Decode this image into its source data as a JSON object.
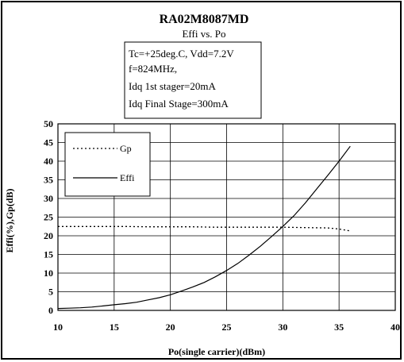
{
  "chart_data": {
    "type": "line",
    "title": "RA02M8087MD",
    "subtitle": "Effi vs. Po",
    "conditions": [
      "Tc=+25deg.C, Vdd=7.2V",
      "f=824MHz,",
      "Idq 1st stager=20mA",
      "Idq Final Stage=300mA"
    ],
    "xlabel": "Po(single carrier)(dBm)",
    "ylabel": "Effi(%),Gp(dB)",
    "xlim": [
      10,
      40
    ],
    "ylim": [
      0,
      50
    ],
    "xticks": [
      10,
      15,
      20,
      25,
      30,
      35,
      40
    ],
    "yticks": [
      0,
      5,
      10,
      15,
      20,
      25,
      30,
      35,
      40,
      45,
      50
    ],
    "grid": true,
    "legend_position": "top-left",
    "series": [
      {
        "name": "Gp",
        "style": "dotted",
        "color": "#000000",
        "x": [
          10,
          12,
          14,
          16,
          18,
          20,
          22,
          24,
          26,
          28,
          30,
          32,
          34,
          35,
          36
        ],
        "y": [
          22.5,
          22.5,
          22.5,
          22.5,
          22.4,
          22.4,
          22.4,
          22.3,
          22.3,
          22.3,
          22.3,
          22.2,
          22.1,
          21.8,
          21.3
        ]
      },
      {
        "name": "Effi",
        "style": "solid",
        "color": "#000000",
        "x": [
          10,
          11,
          12,
          13,
          14,
          15,
          16,
          17,
          18,
          19,
          20,
          21,
          22,
          23,
          24,
          25,
          26,
          27,
          28,
          29,
          30,
          31,
          32,
          33,
          34,
          35,
          36
        ],
        "y": [
          0.5,
          0.6,
          0.7,
          0.9,
          1.2,
          1.5,
          1.8,
          2.2,
          2.8,
          3.4,
          4.2,
          5.2,
          6.3,
          7.5,
          9.0,
          10.7,
          12.6,
          14.8,
          17.2,
          19.8,
          22.5,
          25.4,
          28.8,
          32.5,
          36.2,
          40.0,
          44.0
        ]
      }
    ]
  }
}
